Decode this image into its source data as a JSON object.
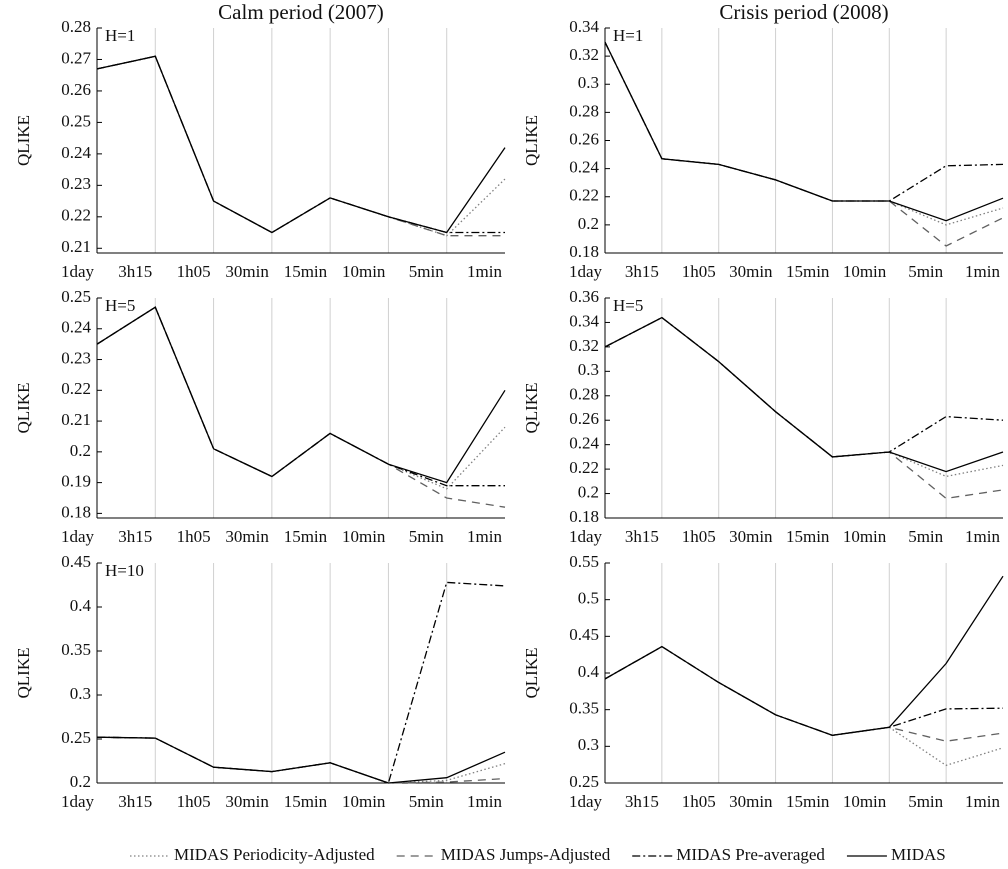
{
  "chart_data": [
    {
      "type": "line",
      "title": "Calm period (2007)",
      "ylabel": "QLIKE",
      "annotation": "H=1",
      "legend": "bottom",
      "grid": "x",
      "categories": [
        "1day",
        "3h15",
        "1h05",
        "30min",
        "15min",
        "10min",
        "5min",
        "1min"
      ],
      "ylim": [
        0.2085,
        0.28
      ],
      "yticks": [
        0.21,
        0.22,
        0.23,
        0.24,
        0.25,
        0.26,
        0.27,
        0.28
      ],
      "series": [
        {
          "name": "MIDAS Periodicity-Adjusted",
          "color": "#808080",
          "linestyle": "dotted",
          "values": [
            0.267,
            0.271,
            0.225,
            0.215,
            0.226,
            0.22,
            0.214,
            0.232
          ]
        },
        {
          "name": "MIDAS Jumps-Adjusted",
          "color": "#606060",
          "linestyle": "dashed",
          "values": [
            0.267,
            0.271,
            0.225,
            0.215,
            0.226,
            0.22,
            0.214,
            0.214
          ]
        },
        {
          "name": "MIDAS Pre-averaged",
          "color": "#000000",
          "linestyle": "dashdot",
          "values": [
            0.267,
            0.271,
            0.225,
            0.215,
            0.226,
            0.22,
            0.215,
            0.215
          ]
        },
        {
          "name": "MIDAS",
          "color": "#000000",
          "linestyle": "solid",
          "values": [
            0.267,
            0.271,
            0.225,
            0.215,
            0.226,
            0.22,
            0.215,
            0.242
          ]
        }
      ]
    },
    {
      "type": "line",
      "title": "Crisis period (2008)",
      "ylabel": "QLIKE",
      "annotation": "H=1",
      "grid": "x",
      "categories": [
        "1day",
        "3h15",
        "1h05",
        "30min",
        "15min",
        "10min",
        "5min",
        "1min"
      ],
      "ylim": [
        0.18,
        0.34
      ],
      "yticks": [
        0.18,
        0.2,
        0.22,
        0.24,
        0.26,
        0.28,
        0.3,
        0.32,
        0.34
      ],
      "series": [
        {
          "name": "MIDAS Periodicity-Adjusted",
          "color": "#808080",
          "linestyle": "dotted",
          "values": [
            0.33,
            0.247,
            0.243,
            0.232,
            0.217,
            0.217,
            0.2,
            0.212
          ]
        },
        {
          "name": "MIDAS Jumps-Adjusted",
          "color": "#606060",
          "linestyle": "dashed",
          "values": [
            0.33,
            0.247,
            0.243,
            0.232,
            0.217,
            0.217,
            0.185,
            0.205
          ]
        },
        {
          "name": "MIDAS Pre-averaged",
          "color": "#000000",
          "linestyle": "dashdot",
          "values": [
            0.33,
            0.247,
            0.243,
            0.232,
            0.217,
            0.217,
            0.242,
            0.243
          ]
        },
        {
          "name": "MIDAS",
          "color": "#000000",
          "linestyle": "solid",
          "values": [
            0.33,
            0.247,
            0.243,
            0.232,
            0.217,
            0.217,
            0.203,
            0.219
          ]
        }
      ]
    },
    {
      "type": "line",
      "ylabel": "QLIKE",
      "annotation": "H=5",
      "grid": "x",
      "categories": [
        "1day",
        "3h15",
        "1h05",
        "30min",
        "15min",
        "10min",
        "5min",
        "1min"
      ],
      "ylim": [
        0.1785,
        0.25
      ],
      "yticks": [
        0.18,
        0.19,
        0.2,
        0.21,
        0.22,
        0.23,
        0.24,
        0.25
      ],
      "series": [
        {
          "name": "MIDAS Periodicity-Adjusted",
          "color": "#808080",
          "linestyle": "dotted",
          "values": [
            0.235,
            0.247,
            0.201,
            0.192,
            0.206,
            0.196,
            0.188,
            0.208
          ]
        },
        {
          "name": "MIDAS Jumps-Adjusted",
          "color": "#606060",
          "linestyle": "dashed",
          "values": [
            0.235,
            0.247,
            0.201,
            0.192,
            0.206,
            0.196,
            0.185,
            0.182
          ]
        },
        {
          "name": "MIDAS Pre-averaged",
          "color": "#000000",
          "linestyle": "dashdot",
          "values": [
            0.235,
            0.247,
            0.201,
            0.192,
            0.206,
            0.196,
            0.189,
            0.189
          ]
        },
        {
          "name": "MIDAS",
          "color": "#000000",
          "linestyle": "solid",
          "values": [
            0.235,
            0.247,
            0.201,
            0.192,
            0.206,
            0.196,
            0.19,
            0.22
          ]
        }
      ]
    },
    {
      "type": "line",
      "ylabel": "QLIKE",
      "annotation": "H=5",
      "grid": "x",
      "categories": [
        "1day",
        "3h15",
        "1h05",
        "30min",
        "15min",
        "10min",
        "5min",
        "1min"
      ],
      "ylim": [
        0.18,
        0.36
      ],
      "yticks": [
        0.18,
        0.2,
        0.22,
        0.24,
        0.26,
        0.28,
        0.3,
        0.32,
        0.34,
        0.36
      ],
      "series": [
        {
          "name": "MIDAS Periodicity-Adjusted",
          "color": "#808080",
          "linestyle": "dotted",
          "values": [
            0.32,
            0.344,
            0.308,
            0.267,
            0.23,
            0.234,
            0.214,
            0.223
          ]
        },
        {
          "name": "MIDAS Jumps-Adjusted",
          "color": "#606060",
          "linestyle": "dashed",
          "values": [
            0.32,
            0.344,
            0.308,
            0.267,
            0.23,
            0.234,
            0.196,
            0.203
          ]
        },
        {
          "name": "MIDAS Pre-averaged",
          "color": "#000000",
          "linestyle": "dashdot",
          "values": [
            0.32,
            0.344,
            0.308,
            0.267,
            0.23,
            0.234,
            0.263,
            0.26
          ]
        },
        {
          "name": "MIDAS",
          "color": "#000000",
          "linestyle": "solid",
          "values": [
            0.32,
            0.344,
            0.308,
            0.267,
            0.23,
            0.234,
            0.218,
            0.234
          ]
        }
      ]
    },
    {
      "type": "line",
      "ylabel": "QLIKE",
      "annotation": "H=10",
      "grid": "x",
      "categories": [
        "1day",
        "3h15",
        "1h05",
        "30min",
        "15min",
        "10min",
        "5min",
        "1min"
      ],
      "ylim": [
        0.2,
        0.45
      ],
      "yticks": [
        0.2,
        0.25,
        0.3,
        0.35,
        0.4,
        0.45
      ],
      "series": [
        {
          "name": "MIDAS Periodicity-Adjusted",
          "color": "#808080",
          "linestyle": "dotted",
          "values": [
            0.252,
            0.251,
            0.218,
            0.213,
            0.223,
            0.2,
            0.203,
            0.222
          ]
        },
        {
          "name": "MIDAS Jumps-Adjusted",
          "color": "#606060",
          "linestyle": "dashed",
          "values": [
            0.252,
            0.251,
            0.218,
            0.213,
            0.223,
            0.2,
            0.201,
            0.205
          ]
        },
        {
          "name": "MIDAS Pre-averaged",
          "color": "#000000",
          "linestyle": "dashdot",
          "values": [
            0.252,
            0.251,
            0.218,
            0.213,
            0.223,
            0.2,
            0.428,
            0.424
          ]
        },
        {
          "name": "MIDAS",
          "color": "#000000",
          "linestyle": "solid",
          "values": [
            0.252,
            0.251,
            0.218,
            0.213,
            0.223,
            0.2,
            0.206,
            0.235
          ]
        }
      ]
    },
    {
      "type": "line",
      "ylabel": "QLIKE",
      "grid": "x",
      "categories": [
        "1day",
        "3h15",
        "1h05",
        "30min",
        "15min",
        "10min",
        "5min",
        "1min"
      ],
      "ylim": [
        0.25,
        0.55
      ],
      "yticks": [
        0.25,
        0.3,
        0.35,
        0.4,
        0.45,
        0.5,
        0.55
      ],
      "series": [
        {
          "name": "MIDAS Periodicity-Adjusted",
          "color": "#808080",
          "linestyle": "dotted",
          "values": [
            0.392,
            0.436,
            0.387,
            0.343,
            0.315,
            0.326,
            0.274,
            0.298
          ]
        },
        {
          "name": "MIDAS Jumps-Adjusted",
          "color": "#606060",
          "linestyle": "dashed",
          "values": [
            0.392,
            0.436,
            0.387,
            0.343,
            0.315,
            0.326,
            0.307,
            0.318
          ]
        },
        {
          "name": "MIDAS Pre-averaged",
          "color": "#000000",
          "linestyle": "dashdot",
          "values": [
            0.392,
            0.436,
            0.387,
            0.343,
            0.315,
            0.326,
            0.351,
            0.352
          ]
        },
        {
          "name": "MIDAS",
          "color": "#000000",
          "linestyle": "solid",
          "values": [
            0.392,
            0.436,
            0.387,
            0.343,
            0.315,
            0.326,
            0.413,
            0.532
          ]
        }
      ]
    }
  ]
}
